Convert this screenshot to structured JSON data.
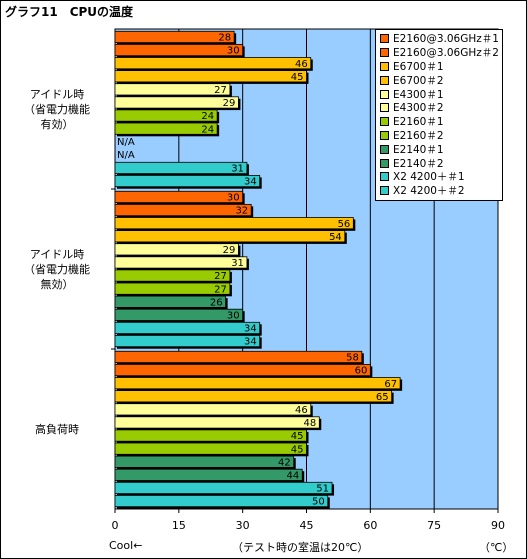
{
  "title": "グラフ11　CPUの温度",
  "footer": {
    "cool_label": "Cool←",
    "condition": "（テスト時の室温は20℃）",
    "unit": "（℃）"
  },
  "chart_data": {
    "type": "bar",
    "orientation": "horizontal",
    "title": "グラフ11　CPUの温度",
    "xlim": [
      0,
      90
    ],
    "xticks": [
      0,
      15,
      30,
      45,
      60,
      75,
      90
    ],
    "grid": true,
    "legend_position": "top-right",
    "categories": [
      {
        "label_lines": [
          "アイドル時",
          "（省電力機能",
          "有効）"
        ]
      },
      {
        "label_lines": [
          "アイドル時",
          "（省電力機能",
          "無効）"
        ]
      },
      {
        "label_lines": [
          "高負荷時"
        ]
      }
    ],
    "series": [
      {
        "name": "E2160@3.06GHz＃1",
        "color": "#ff6600",
        "values": [
          28,
          30,
          58
        ]
      },
      {
        "name": "E2160@3.06GHz＃2",
        "color": "#ff6600",
        "values": [
          30,
          32,
          60
        ]
      },
      {
        "name": "E6700＃1",
        "color": "#ffc000",
        "values": [
          46,
          56,
          67
        ]
      },
      {
        "name": "E6700＃2",
        "color": "#ffc000",
        "values": [
          45,
          54,
          65
        ]
      },
      {
        "name": "E4300＃1",
        "color": "#ffff99",
        "values": [
          27,
          29,
          46
        ]
      },
      {
        "name": "E4300＃2",
        "color": "#ffff99",
        "values": [
          29,
          31,
          48
        ]
      },
      {
        "name": "E2160＃1",
        "color": "#99cc00",
        "values": [
          24,
          27,
          45
        ]
      },
      {
        "name": "E2160＃2",
        "color": "#99cc00",
        "values": [
          24,
          27,
          45
        ]
      },
      {
        "name": "E2140＃1",
        "color": "#339966",
        "values": [
          null,
          26,
          42
        ]
      },
      {
        "name": "E2140＃2",
        "color": "#339966",
        "values": [
          null,
          30,
          44
        ]
      },
      {
        "name": "X2 4200＋＃1",
        "color": "#33cccc",
        "values": [
          31,
          34,
          51
        ]
      },
      {
        "name": "X2 4200＋＃2",
        "color": "#33cccc",
        "values": [
          34,
          34,
          50
        ]
      }
    ],
    "missing_label": "N/A"
  }
}
